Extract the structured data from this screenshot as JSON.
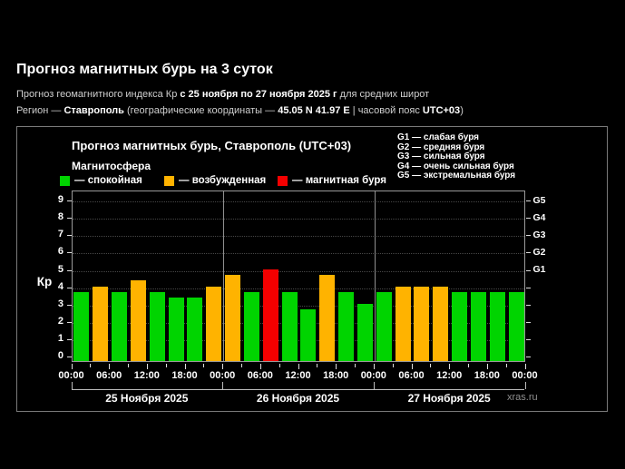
{
  "header": {
    "title": "Прогноз магнитных бурь на 3 суток",
    "subtitle_prefix": "Прогноз геомагнитного индекса Кр ",
    "subtitle_bold": "с 25 ноября по 27 ноября 2025 г",
    "subtitle_suffix": " для средних широт",
    "region_prefix": "Регион — ",
    "region_name": "Ставрополь",
    "region_mid": " (географические координаты — ",
    "region_coords": "45.05 N 41.97 E",
    "region_sep": " | часовой пояс ",
    "region_tz": "UTC+03",
    "region_close": ")"
  },
  "chart": {
    "title": "Прогноз магнитных бурь, Ставрополь (UTC+03)",
    "legend_title": "Магнитосфера",
    "legend": [
      {
        "state": "quiet",
        "label": "— спокойная",
        "color": "#00d400"
      },
      {
        "state": "excited",
        "label": "— возбужденная",
        "color": "#ffb300"
      },
      {
        "state": "storm",
        "label": "— магнитная буря",
        "color": "#f40000"
      }
    ],
    "g_legend": [
      "G1 — слабая буря",
      "G2 — средняя буря",
      "G3 — сильная буря",
      "G4 — очень сильная буря",
      "G5 — экстремальная буря"
    ],
    "watermark": "xras.ru"
  },
  "chart_data": {
    "type": "bar",
    "title": "Прогноз магнитных бурь, Ставрополь (UTC+03)",
    "ylabel": "Кр",
    "ylim": [
      0,
      9
    ],
    "y_ticks": [
      0,
      1,
      2,
      3,
      4,
      5,
      6,
      7,
      8,
      9
    ],
    "grid": true,
    "legend_position": "top",
    "right_axis": {
      "labels": [
        "G1",
        "G2",
        "G3",
        "G4",
        "G5"
      ],
      "kp_levels": [
        5,
        6,
        7,
        8,
        9
      ]
    },
    "x_tick_labels": [
      "00:00",
      "06:00",
      "12:00",
      "18:00",
      "00:00",
      "06:00",
      "12:00",
      "18:00",
      "00:00",
      "06:00",
      "12:00",
      "18:00",
      "00:00"
    ],
    "days": [
      "25 Ноября 2025",
      "26 Ноября 2025",
      "27 Ноября 2025"
    ],
    "bars_per_day": 8,
    "hours_per_bar": 3,
    "values": [
      3.67,
      4.0,
      3.67,
      4.33,
      3.67,
      3.33,
      3.33,
      4.0,
      4.67,
      3.67,
      5.0,
      3.67,
      2.67,
      4.67,
      3.67,
      3.0,
      3.67,
      4.0,
      4.0,
      4.0,
      3.67,
      3.67,
      3.67,
      3.67
    ],
    "states": [
      "quiet",
      "excited",
      "quiet",
      "excited",
      "quiet",
      "quiet",
      "quiet",
      "excited",
      "excited",
      "quiet",
      "storm",
      "quiet",
      "quiet",
      "excited",
      "quiet",
      "quiet",
      "quiet",
      "excited",
      "excited",
      "excited",
      "quiet",
      "quiet",
      "quiet",
      "quiet"
    ],
    "state_colors": {
      "quiet": "#00d400",
      "excited": "#ffb300",
      "storm": "#f40000"
    }
  }
}
